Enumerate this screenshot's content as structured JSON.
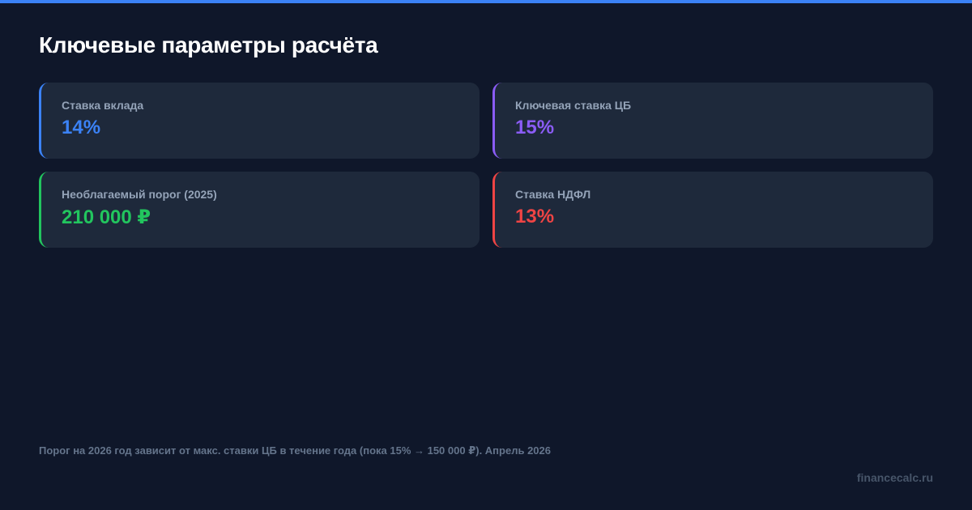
{
  "header": {
    "title": "Ключевые параметры расчёта"
  },
  "colors": {
    "accent_bar": "#3b82f6",
    "blue": "#3b82f6",
    "purple": "#8b5cf6",
    "green": "#22c55e",
    "red": "#ef4444"
  },
  "cards": [
    {
      "label": "Ставка вклада",
      "value": "14%",
      "color": "#3b82f6"
    },
    {
      "label": "Ключевая ставка ЦБ",
      "value": "15%",
      "color": "#8b5cf6"
    },
    {
      "label": "Необлагаемый порог (2025)",
      "value": "210 000 ₽",
      "color": "#22c55e"
    },
    {
      "label": "Ставка НДФЛ",
      "value": "13%",
      "color": "#ef4444"
    }
  ],
  "footer": {
    "note": "Порог на 2026 год зависит от макс. ставки ЦБ в течение года (пока 15% → 150 000 ₽). Апрель 2026",
    "site": "financecalc.ru"
  }
}
